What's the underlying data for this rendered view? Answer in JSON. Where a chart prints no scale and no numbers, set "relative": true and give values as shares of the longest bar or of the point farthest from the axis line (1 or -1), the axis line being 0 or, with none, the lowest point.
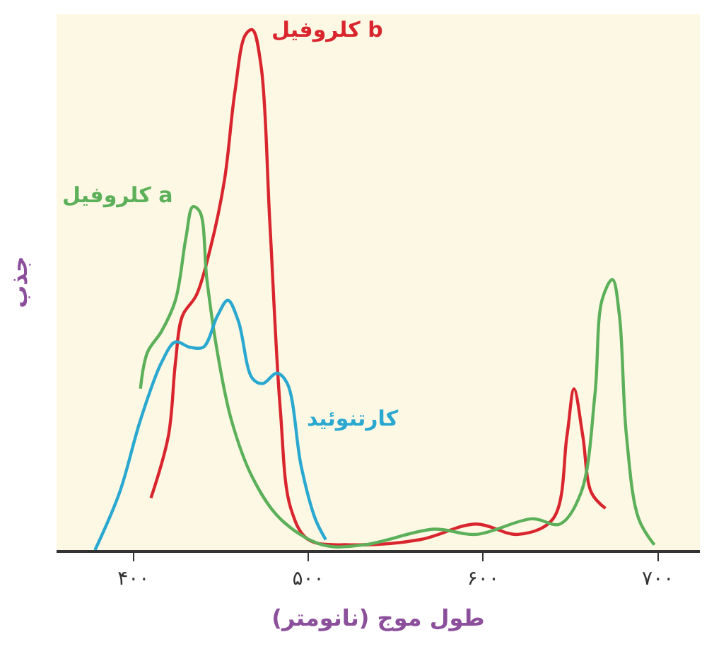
{
  "chart_data": {
    "type": "line",
    "relative": true,
    "xlabel": "طول موج (نانومتر)",
    "ylabel": "جذب",
    "legend": false,
    "grid": false,
    "marker": "none",
    "line_style": "solid",
    "xlim": [
      356,
      724
    ],
    "xticks": [
      {
        "value": 400,
        "label": "۴۰۰"
      },
      {
        "value": 500,
        "label": "۵۰۰"
      },
      {
        "value": 600,
        "label": "۶۰۰"
      },
      {
        "value": 700,
        "label": "۷۰۰"
      }
    ],
    "series": [
      {
        "name": "کلروفیل b",
        "color": "#d9262e",
        "x": [
          410,
          420,
          424,
          428,
          436,
          444,
          452,
          458,
          464,
          468,
          473,
          478,
          484,
          490,
          500,
          524,
          564,
          596,
          620,
          640,
          648,
          652,
          657,
          662,
          670
        ],
        "values": [
          0.1,
          0.22,
          0.36,
          0.45,
          0.49,
          0.58,
          0.71,
          0.88,
          0.99,
          1.0,
          0.93,
          0.63,
          0.27,
          0.08,
          0.02,
          0.01,
          0.02,
          0.05,
          0.03,
          0.06,
          0.22,
          0.31,
          0.22,
          0.11,
          0.08
        ]
      },
      {
        "name": "کلروفیل a",
        "color": "#5db05a",
        "x": [
          404,
          408,
          416,
          424,
          430,
          434,
          438,
          442,
          448,
          456,
          468,
          484,
          508,
          532,
          572,
          596,
          628,
          644,
          656,
          664,
          668,
          674,
          678,
          682,
          689,
          698
        ],
        "values": [
          0.31,
          0.38,
          0.42,
          0.48,
          0.6,
          0.66,
          0.65,
          0.52,
          0.38,
          0.25,
          0.14,
          0.06,
          0.01,
          0.01,
          0.04,
          0.03,
          0.06,
          0.05,
          0.11,
          0.3,
          0.48,
          0.52,
          0.45,
          0.22,
          0.06,
          0.01
        ]
      },
      {
        "name": "کارتنوئید",
        "color": "#2aa8d0",
        "x": [
          378,
          392,
          404,
          416,
          424,
          432,
          440,
          448,
          454,
          460,
          468,
          474,
          482,
          488,
          496,
          504,
          510
        ],
        "values": [
          0.0,
          0.11,
          0.25,
          0.36,
          0.4,
          0.39,
          0.39,
          0.45,
          0.48,
          0.44,
          0.33,
          0.32,
          0.34,
          0.32,
          0.16,
          0.06,
          0.02
        ]
      }
    ]
  }
}
